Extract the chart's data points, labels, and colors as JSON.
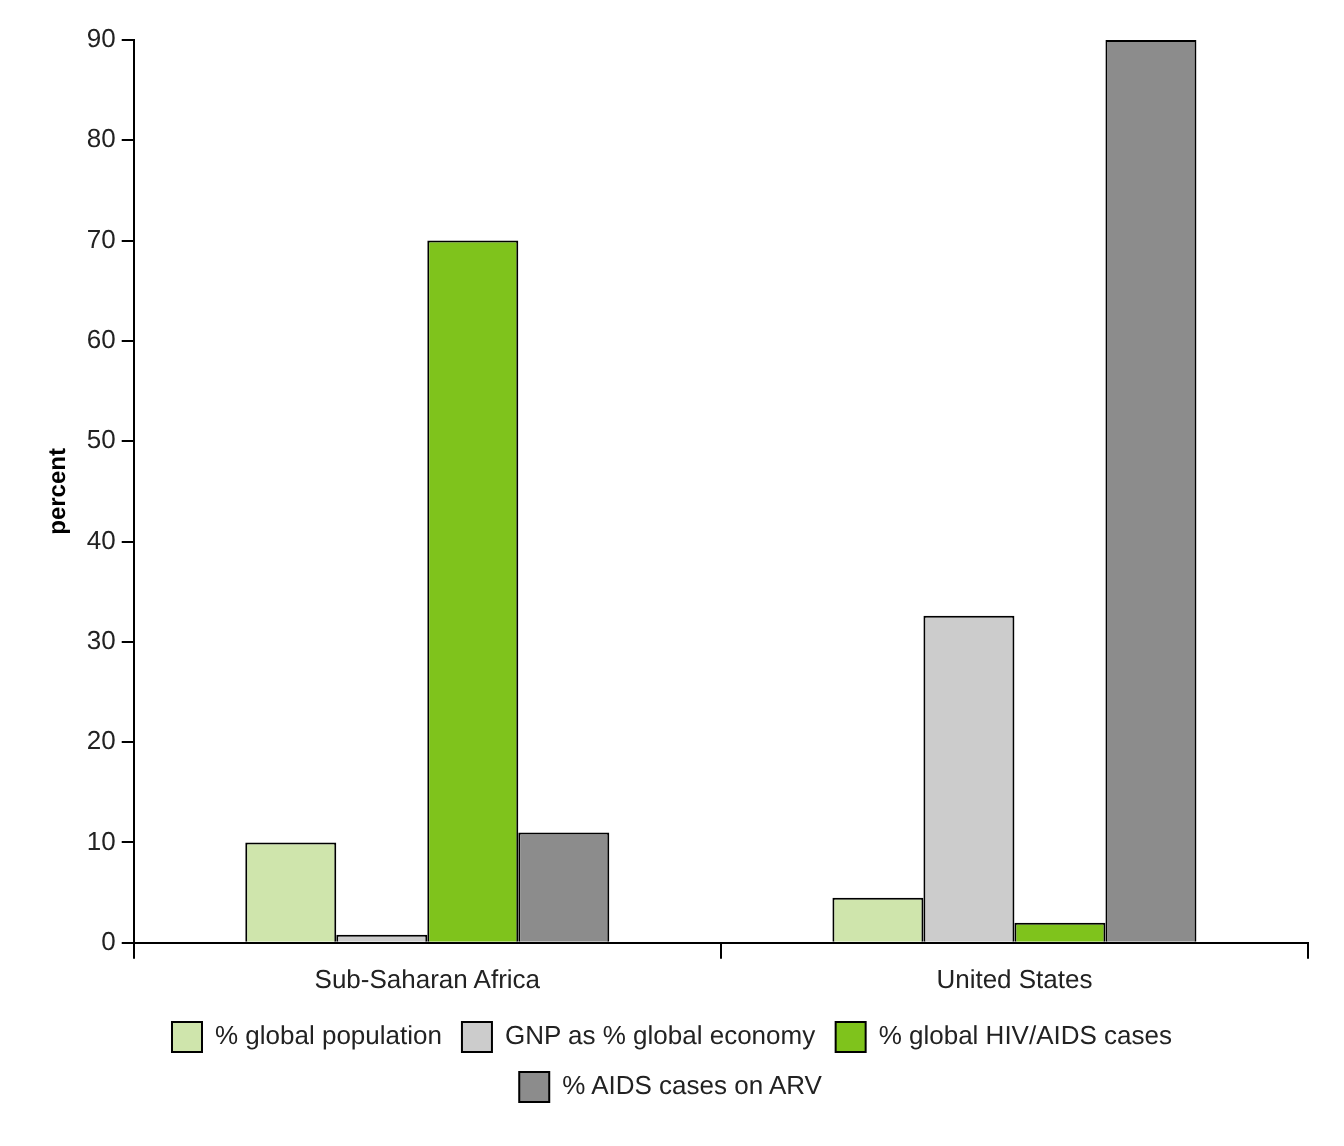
{
  "chart_data": {
    "type": "bar",
    "ylabel": "percent",
    "categories": [
      "Sub-Saharan Africa",
      "United States"
    ],
    "series": [
      {
        "name": "% global population",
        "color": "#cfe5ac",
        "values": [
          10,
          4.5
        ]
      },
      {
        "name": "GNP as % global economy",
        "color": "#cccccc",
        "values": [
          0.8,
          32.6
        ]
      },
      {
        "name": "% global HIV/AIDS cases",
        "color": "#7fc31c",
        "values": [
          70,
          2
        ]
      },
      {
        "name": "% AIDS cases on ARV",
        "color": "#8c8c8c",
        "values": [
          11,
          90
        ]
      }
    ],
    "ylim": [
      0,
      90
    ],
    "yticks": [
      0,
      10,
      20,
      30,
      40,
      50,
      60,
      70,
      80,
      90
    ],
    "grid": false,
    "legend": "bottom"
  }
}
